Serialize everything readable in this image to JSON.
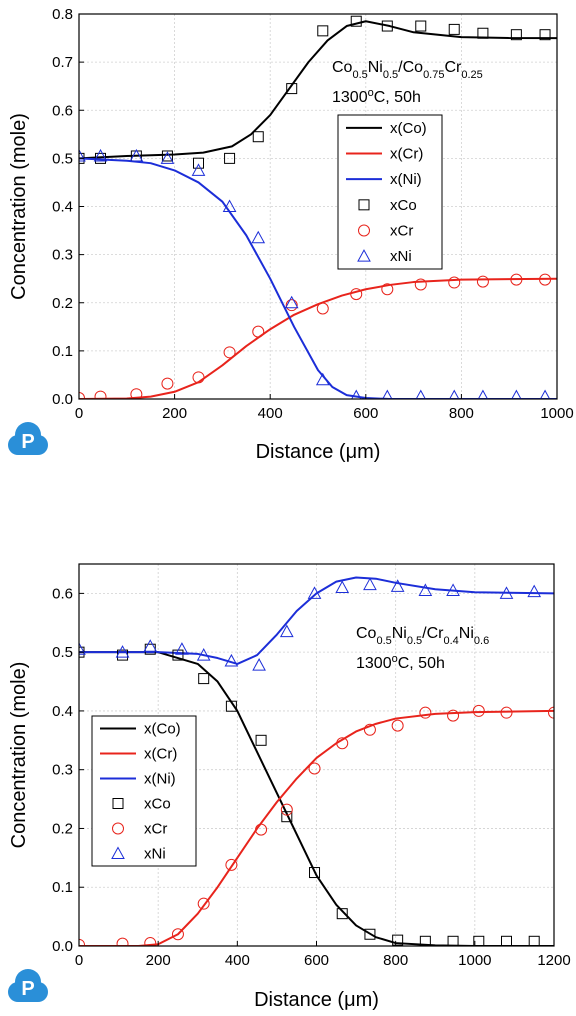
{
  "logo": {
    "letter": "P",
    "color": "#2a8fd8"
  },
  "chart_data": [
    {
      "type": "line",
      "xlabel": "Distance (μm)",
      "ylabel": "Concentration (mole)",
      "xlim": [
        0,
        1000
      ],
      "ylim": [
        0,
        0.8
      ],
      "xticks": [
        0,
        200,
        400,
        600,
        800,
        1000
      ],
      "yticks": [
        0.0,
        0.1,
        0.2,
        0.3,
        0.4,
        0.5,
        0.6,
        0.7,
        0.8
      ],
      "grid": true,
      "legend_position": "middle-right",
      "annotation": {
        "line1": {
          "a": "Co",
          "b": "0.5",
          "c": "Ni",
          "d": "0.5",
          "e": "/Co",
          "f": "0.75",
          "g": "Cr",
          "h": "0.25"
        },
        "line2": {
          "a": "1300",
          "b": "o",
          "c": "C, 50h"
        }
      },
      "series": [
        {
          "name": "x(Co)",
          "kind": "line",
          "color": "#000000",
          "x": [
            0,
            100,
            200,
            260,
            320,
            360,
            400,
            440,
            480,
            520,
            560,
            600,
            650,
            700,
            800,
            900,
            1000
          ],
          "y": [
            0.5,
            0.505,
            0.508,
            0.512,
            0.525,
            0.55,
            0.59,
            0.645,
            0.7,
            0.745,
            0.775,
            0.785,
            0.775,
            0.762,
            0.752,
            0.75,
            0.75
          ]
        },
        {
          "name": "x(Cr)",
          "kind": "line",
          "color": "#e8241c",
          "x": [
            0,
            100,
            150,
            200,
            250,
            300,
            350,
            400,
            450,
            500,
            550,
            600,
            650,
            700,
            800,
            900,
            1000
          ],
          "y": [
            0,
            0.001,
            0.005,
            0.015,
            0.035,
            0.07,
            0.11,
            0.145,
            0.175,
            0.197,
            0.215,
            0.228,
            0.237,
            0.243,
            0.248,
            0.249,
            0.25
          ]
        },
        {
          "name": "x(Ni)",
          "kind": "line",
          "color": "#1c2ed8",
          "x": [
            0,
            100,
            150,
            200,
            250,
            300,
            350,
            400,
            450,
            500,
            530,
            560,
            600,
            650,
            700,
            1000
          ],
          "y": [
            0.5,
            0.495,
            0.49,
            0.475,
            0.45,
            0.41,
            0.34,
            0.25,
            0.15,
            0.06,
            0.025,
            0.008,
            0.002,
            0.0,
            0.0,
            0.0
          ]
        },
        {
          "name": "xCo",
          "kind": "square",
          "color": "#000000",
          "x": [
            0,
            45,
            120,
            185,
            250,
            315,
            375,
            445,
            510,
            580,
            645,
            715,
            785,
            845,
            915,
            975
          ],
          "y": [
            0.5,
            0.5,
            0.505,
            0.505,
            0.49,
            0.5,
            0.545,
            0.645,
            0.765,
            0.785,
            0.775,
            0.775,
            0.768,
            0.76,
            0.757,
            0.757
          ]
        },
        {
          "name": "xCr",
          "kind": "circle",
          "color": "#e8241c",
          "x": [
            0,
            45,
            120,
            185,
            250,
            315,
            375,
            445,
            510,
            580,
            645,
            715,
            785,
            845,
            915,
            975
          ],
          "y": [
            0.002,
            0.005,
            0.01,
            0.032,
            0.045,
            0.097,
            0.14,
            0.195,
            0.188,
            0.218,
            0.228,
            0.238,
            0.242,
            0.244,
            0.248,
            0.248
          ]
        },
        {
          "name": "xNi",
          "kind": "triangle",
          "color": "#1c2ed8",
          "x": [
            0,
            45,
            120,
            185,
            250,
            315,
            375,
            445,
            510,
            580,
            645,
            715,
            785,
            845,
            915,
            975
          ],
          "y": [
            0.505,
            0.505,
            0.505,
            0.5,
            0.475,
            0.4,
            0.335,
            0.2,
            0.04,
            0.005,
            0.005,
            0.005,
            0.005,
            0.005,
            0.005,
            0.005
          ]
        }
      ]
    },
    {
      "type": "line",
      "xlabel": "Distance (μm)",
      "ylabel": "Concentration (mole)",
      "xlim": [
        0,
        1200
      ],
      "ylim": [
        0,
        0.65
      ],
      "xticks": [
        0,
        200,
        400,
        600,
        800,
        1000,
        1200
      ],
      "yticks": [
        0.0,
        0.1,
        0.2,
        0.3,
        0.4,
        0.5,
        0.6
      ],
      "grid": true,
      "legend_position": "middle-left",
      "annotation": {
        "line1": {
          "a": "Co",
          "b": "0.5",
          "c": "Ni",
          "d": "0.5",
          "e": "/Cr",
          "f": "0.4",
          "g": "Ni",
          "h": "0.6"
        },
        "line2": {
          "a": "1300",
          "b": "o",
          "c": "C, 50h"
        }
      },
      "series": [
        {
          "name": "x(Co)",
          "kind": "line",
          "color": "#000000",
          "x": [
            0,
            200,
            300,
            350,
            400,
            450,
            500,
            550,
            600,
            650,
            700,
            750,
            800,
            900,
            1000,
            1200
          ],
          "y": [
            0.5,
            0.5,
            0.48,
            0.45,
            0.4,
            0.33,
            0.26,
            0.19,
            0.12,
            0.07,
            0.035,
            0.015,
            0.005,
            0.001,
            0.0,
            0.0
          ]
        },
        {
          "name": "x(Cr)",
          "kind": "line",
          "color": "#e8241c",
          "x": [
            0,
            150,
            200,
            250,
            300,
            350,
            400,
            450,
            500,
            550,
            600,
            650,
            700,
            750,
            800,
            900,
            1000,
            1200
          ],
          "y": [
            0,
            0.0,
            0.003,
            0.02,
            0.055,
            0.1,
            0.15,
            0.2,
            0.245,
            0.285,
            0.32,
            0.345,
            0.365,
            0.378,
            0.387,
            0.395,
            0.398,
            0.4
          ]
        },
        {
          "name": "x(Ni)",
          "kind": "line",
          "color": "#1c2ed8",
          "x": [
            0,
            200,
            300,
            350,
            400,
            450,
            500,
            550,
            600,
            650,
            700,
            750,
            800,
            900,
            1000,
            1200
          ],
          "y": [
            0.5,
            0.5,
            0.497,
            0.49,
            0.48,
            0.495,
            0.53,
            0.57,
            0.6,
            0.62,
            0.627,
            0.625,
            0.618,
            0.607,
            0.602,
            0.6
          ]
        },
        {
          "name": "xCo",
          "kind": "square",
          "color": "#000000",
          "x": [
            0,
            110,
            180,
            250,
            315,
            385,
            460,
            525,
            595,
            665,
            735,
            805,
            875,
            945,
            1010,
            1080,
            1150
          ],
          "y": [
            0.5,
            0.495,
            0.505,
            0.495,
            0.455,
            0.408,
            0.35,
            0.22,
            0.125,
            0.055,
            0.02,
            0.01,
            0.008,
            0.008,
            0.008,
            0.008,
            0.008
          ]
        },
        {
          "name": "xCr",
          "kind": "circle",
          "color": "#e8241c",
          "x": [
            0,
            110,
            180,
            250,
            315,
            385,
            460,
            525,
            595,
            665,
            735,
            805,
            875,
            945,
            1010,
            1080,
            1200
          ],
          "y": [
            0.002,
            0.004,
            0.005,
            0.02,
            0.072,
            0.138,
            0.198,
            0.232,
            0.302,
            0.345,
            0.368,
            0.375,
            0.397,
            0.392,
            0.4,
            0.397,
            0.397
          ]
        },
        {
          "name": "xNi",
          "kind": "triangle",
          "color": "#1c2ed8",
          "x": [
            0,
            110,
            180,
            260,
            315,
            385,
            455,
            525,
            595,
            665,
            735,
            805,
            875,
            945,
            1080,
            1150
          ],
          "y": [
            0.505,
            0.5,
            0.51,
            0.505,
            0.495,
            0.485,
            0.478,
            0.535,
            0.6,
            0.61,
            0.615,
            0.612,
            0.605,
            0.605,
            0.6,
            0.603
          ]
        }
      ]
    }
  ]
}
